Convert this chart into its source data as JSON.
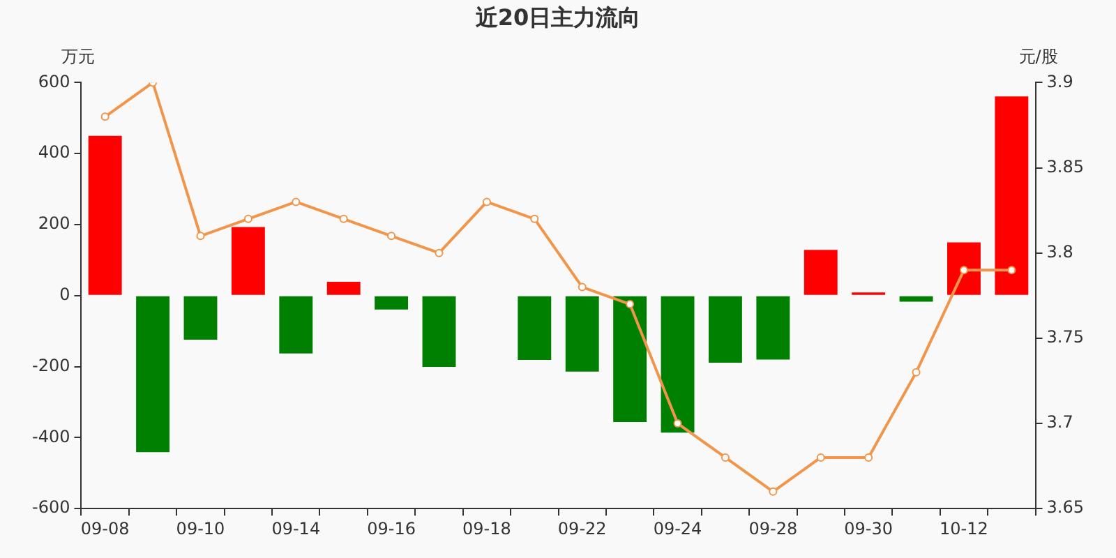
{
  "chart_data": {
    "type": "bar",
    "title": "近20日主力流向",
    "ylabel": "万元",
    "y2label": "元/股",
    "categories": [
      "09-08",
      null,
      "09-10",
      null,
      "09-14",
      null,
      "09-16",
      null,
      "09-18",
      null,
      "09-22",
      null,
      "09-24",
      null,
      "09-28",
      null,
      "09-30",
      null,
      "10-12",
      null
    ],
    "series": [
      {
        "colors": [
          "#ff0000",
          "#008000",
          "#008000",
          "#ff0000",
          "#008000",
          "#ff0000",
          "#008000",
          "#008000",
          "#008000",
          "#008000",
          "#008000",
          "#008000",
          "#008000",
          "#008000",
          "#008000",
          "#ff0000",
          "#ff0000",
          "#008000",
          "#ff0000",
          "#ff0000"
        ],
        "values": [
          450,
          -441,
          -124,
          193,
          -163,
          39,
          -39,
          -201,
          null,
          -181,
          -214,
          -356,
          -386,
          -189,
          -180,
          129,
          9,
          -17,
          150,
          561
        ]
      },
      {
        "type": "line",
        "axis": "y2",
        "color": "#f0954a",
        "marker": "circle",
        "values": [
          3.88,
          3.9,
          3.81,
          3.82,
          3.83,
          3.82,
          3.81,
          3.8,
          3.83,
          3.82,
          3.78,
          3.77,
          3.7,
          3.68,
          3.66,
          3.68,
          3.68,
          3.73,
          3.79,
          3.79
        ]
      }
    ],
    "ylim": [
      -600,
      600
    ],
    "yticks": [
      -600,
      -400,
      -200,
      0,
      200,
      400,
      600
    ],
    "y2lim": [
      3.65,
      3.9
    ],
    "y2ticks": [
      3.65,
      3.7,
      3.75,
      3.8,
      3.85,
      3.9
    ],
    "grid": false,
    "legend": false
  }
}
